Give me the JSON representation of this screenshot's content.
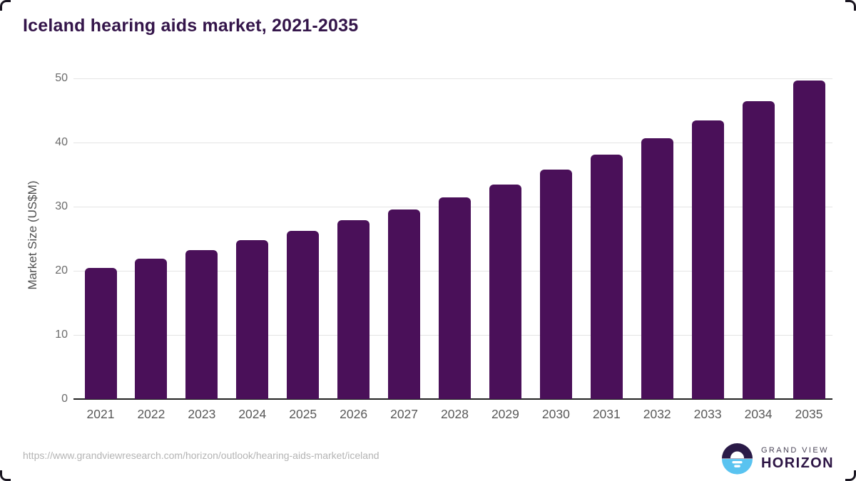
{
  "title": "Iceland hearing aids market, 2021-2035",
  "chart_data": {
    "type": "bar",
    "title": "Iceland hearing aids market, 2021-2035",
    "categories": [
      "2021",
      "2022",
      "2023",
      "2024",
      "2025",
      "2026",
      "2027",
      "2028",
      "2029",
      "2030",
      "2031",
      "2032",
      "2033",
      "2034",
      "2035"
    ],
    "values": [
      20.4,
      21.9,
      23.2,
      24.8,
      26.2,
      27.9,
      29.6,
      31.5,
      33.5,
      35.8,
      38.1,
      40.7,
      43.5,
      46.5,
      49.7
    ],
    "xlabel": "",
    "ylabel": "Market Size (US$M)",
    "ylim": [
      0,
      50
    ],
    "yticks": [
      0,
      10,
      20,
      30,
      40,
      50
    ],
    "grid": true,
    "legend_position": "none",
    "bar_color": "#4a1059"
  },
  "footer": {
    "url": "https://www.grandviewresearch.com/horizon/outlook/hearing-aids-market/iceland",
    "logo": {
      "line1": "GRAND VIEW",
      "line2": "HORIZON",
      "mark_top_color": "#2a1a47",
      "mark_bottom_color": "#59c3f0"
    }
  },
  "colors": {
    "title": "#34154a",
    "bar": "#4a1059",
    "gridline": "#e4e4e4",
    "axis_line": "#222222",
    "tick_label": "#6b6b6b",
    "url_text": "#b4b4b4"
  }
}
